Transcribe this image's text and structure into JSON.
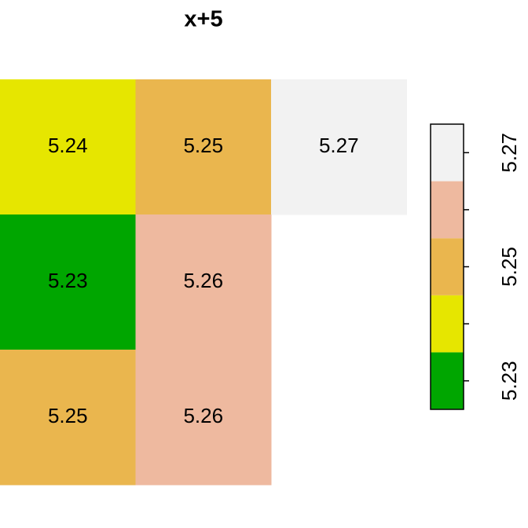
{
  "chart_data": {
    "type": "heatmap",
    "title": "x+5",
    "cells": [
      [
        5.24,
        5.25,
        5.27
      ],
      [
        5.23,
        5.26,
        null
      ],
      [
        5.25,
        5.26,
        null
      ]
    ],
    "legend": {
      "values": [
        5.23,
        5.24,
        5.25,
        5.26,
        5.27
      ],
      "colors": [
        "#00A600",
        "#E6E600",
        "#EAB64E",
        "#EEB99F",
        "#F2F2F2"
      ],
      "ticks": [
        5.23,
        5.25,
        5.27
      ]
    }
  }
}
